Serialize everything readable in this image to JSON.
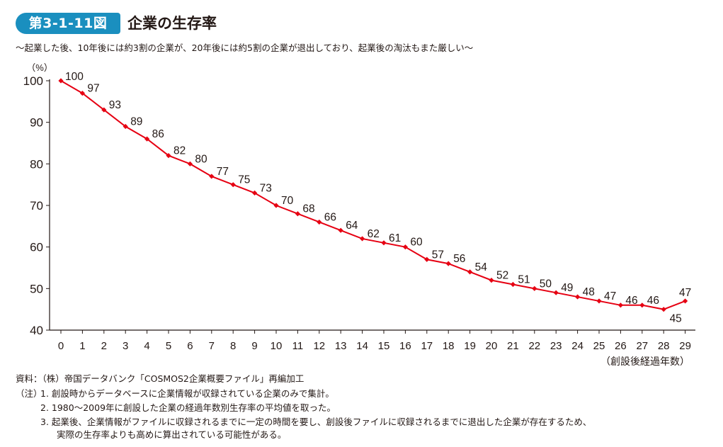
{
  "header": {
    "figure_label": "第3-1-11図",
    "title": "企業の生存率",
    "subtitle": "〜起業した後、10年後には約3割の企業が、20年後には約5割の企業が退出しており、起業後の淘汰もまた厳しい〜"
  },
  "chart_data": {
    "type": "line",
    "x": [
      0,
      1,
      2,
      3,
      4,
      5,
      6,
      7,
      8,
      9,
      10,
      11,
      12,
      13,
      14,
      15,
      16,
      17,
      18,
      19,
      20,
      21,
      22,
      23,
      24,
      25,
      26,
      27,
      28,
      29
    ],
    "series": [
      {
        "values": [
          100,
          97,
          93,
          89,
          86,
          82,
          80,
          77,
          75,
          73,
          70,
          68,
          66,
          64,
          62,
          61,
          60,
          57,
          56,
          54,
          52,
          51,
          50,
          49,
          48,
          47,
          46,
          46,
          45,
          47
        ],
        "color": "#e60012"
      }
    ],
    "x_tick_labels": [
      "0",
      "1",
      "2",
      "3",
      "4",
      "5",
      "6",
      "7",
      "8",
      "9",
      "10",
      "11",
      "12",
      "13",
      "14",
      "15",
      "16",
      "17",
      "18",
      "19",
      "20",
      "21",
      "22",
      "23",
      "24",
      "25",
      "26",
      "27",
      "28",
      "29"
    ],
    "y_ticks": [
      "40",
      "50",
      "60",
      "70",
      "80",
      "90",
      "100"
    ],
    "ylim": [
      40,
      100
    ],
    "xlabel": "（創設後経過年数）",
    "ylabel": "（%）",
    "grid": false,
    "marker": "diamond"
  },
  "footer": {
    "source": "資料：（株）帝国データバンク「COSMOS2企業概要ファイル」再編加工",
    "notes_label": "（注）",
    "notes": [
      "1.  創設時からデータベースに企業情報が収録されている企業のみで集計。",
      "2.  1980〜2009年に創設した企業の経過年数別生存率の平均値を取った。",
      "3.  起業後、企業情報がファイルに収録されるまでに一定の時間を要し、創設後ファイルに収録されるまでに退出した企業が存在するため、",
      "実際の生存率よりも高めに算出されている可能性がある。"
    ]
  }
}
